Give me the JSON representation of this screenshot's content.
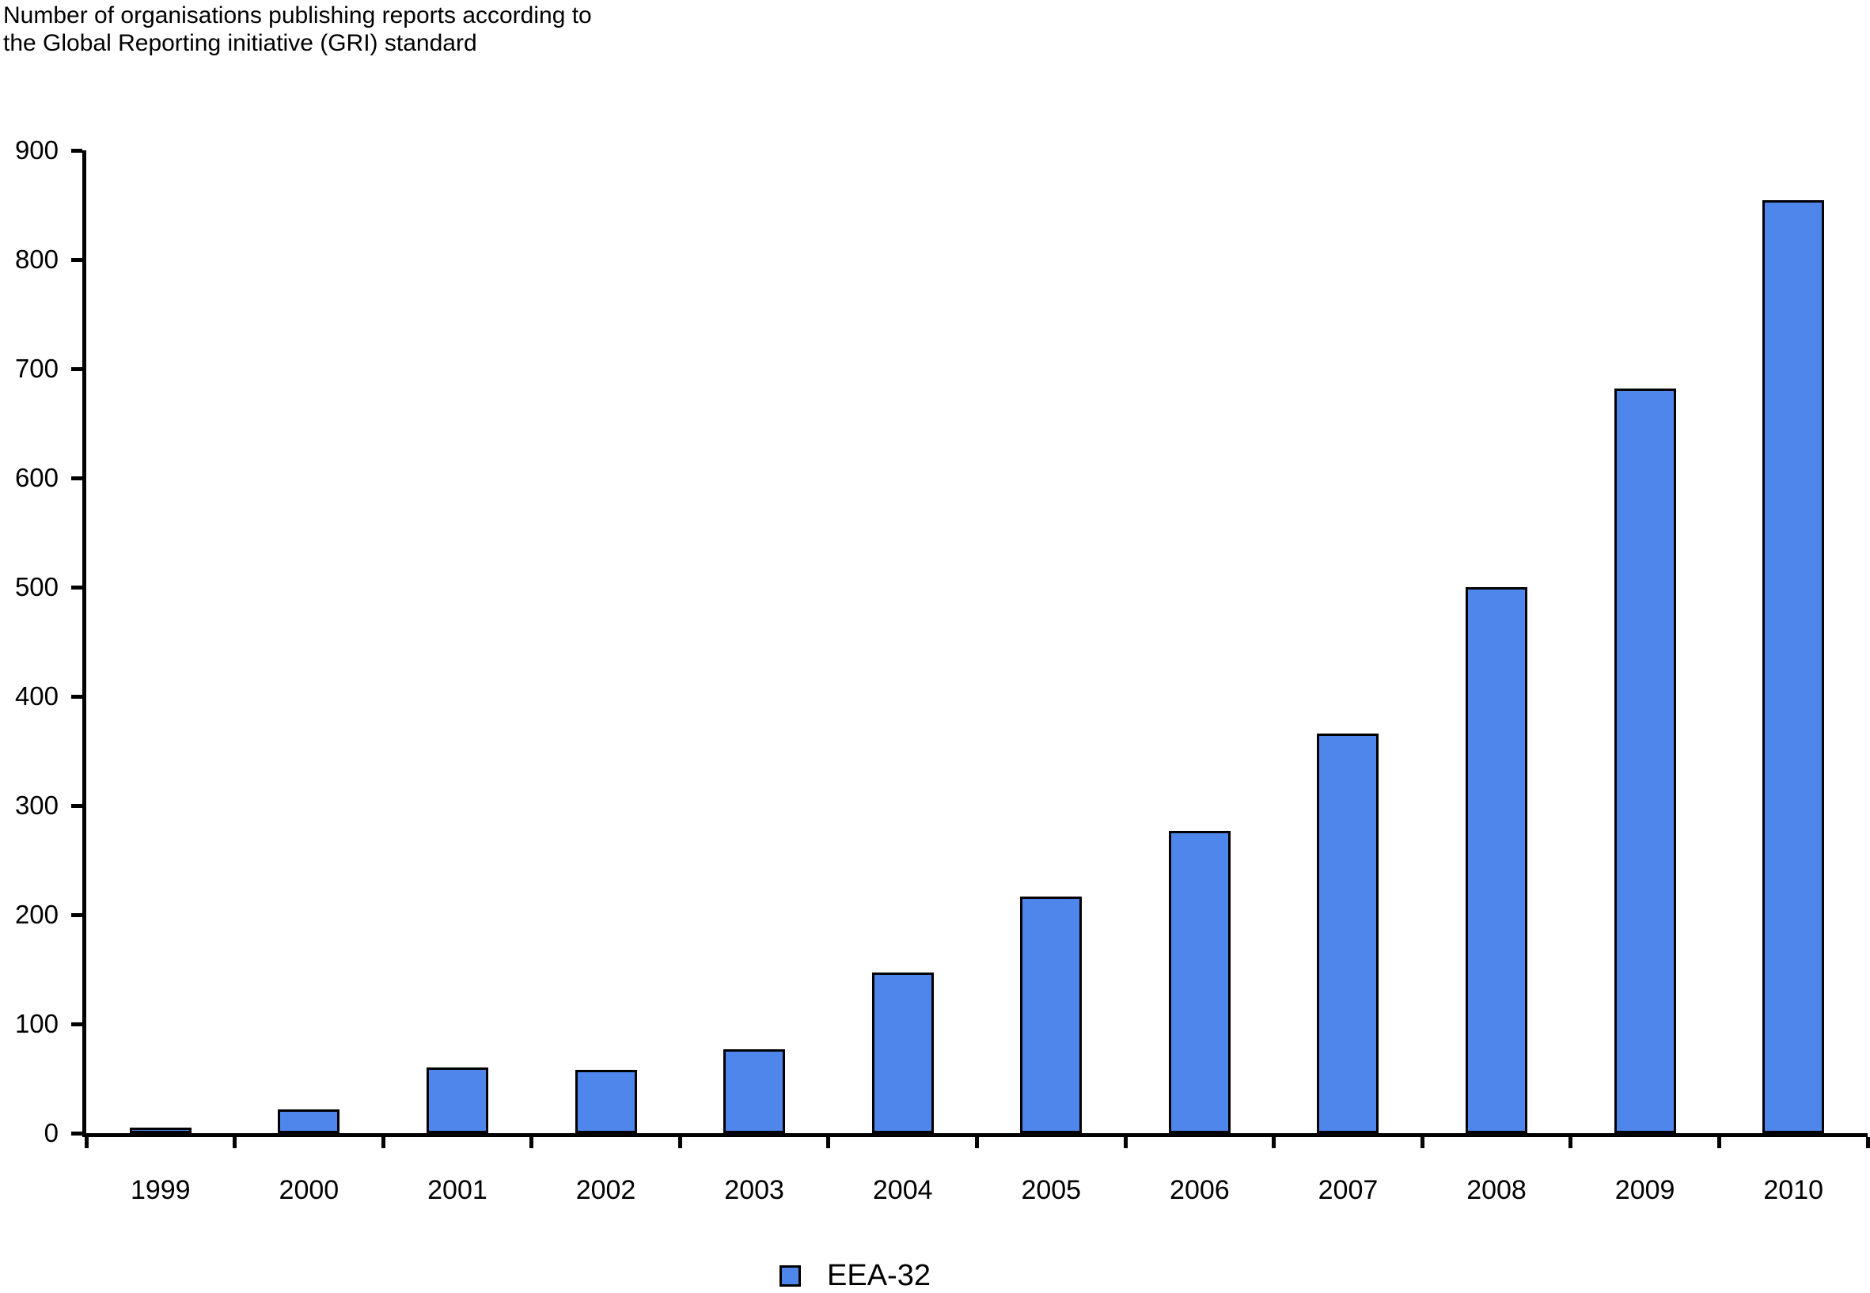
{
  "title": {
    "line1": "Number of organisations publishing reports according to",
    "line2": "the Global Reporting initiative (GRI) standard"
  },
  "legend": {
    "label": "EEA-32"
  },
  "chart_data": {
    "type": "bar",
    "title": "Number of organisations publishing reports according to the Global Reporting initiative (GRI) standard",
    "categories": [
      "1999",
      "2000",
      "2001",
      "2002",
      "2003",
      "2004",
      "2005",
      "2006",
      "2007",
      "2008",
      "2009",
      "2010"
    ],
    "series": [
      {
        "name": "EEA-32",
        "values": [
          5,
          22,
          60,
          58,
          77,
          147,
          217,
          277,
          366,
          500,
          682,
          854
        ]
      }
    ],
    "xlabel": "",
    "ylabel": "",
    "ylim": [
      0,
      900
    ],
    "yticks": [
      0,
      100,
      200,
      300,
      400,
      500,
      600,
      700,
      800,
      900
    ],
    "grid": false,
    "legend_position": "bottom-center",
    "bar_color": "#4e86ec",
    "bar_border_color": "#000000",
    "axis_color": "#000000"
  }
}
